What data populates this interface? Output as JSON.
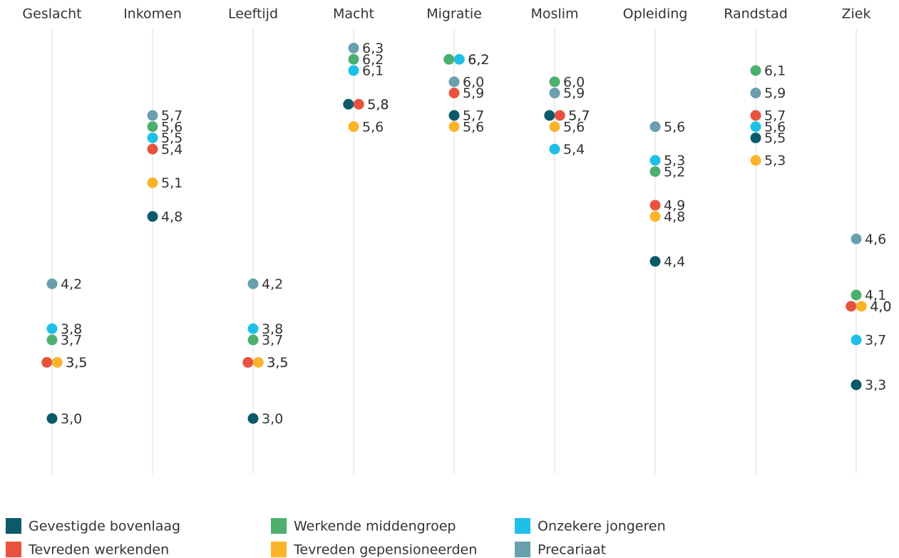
{
  "chart_data": {
    "type": "dot",
    "categories": [
      "Geslacht",
      "Inkomen",
      "Leeftijd",
      "Macht",
      "Migratie",
      "Moslim",
      "Opleiding",
      "Randstad",
      "Ziek"
    ],
    "series": [
      {
        "name": "Gevestigde bovenlaag",
        "color": "#0b5a6b",
        "values": [
          3.0,
          4.8,
          3.0,
          5.8,
          5.7,
          5.7,
          4.4,
          5.5,
          3.3
        ],
        "value_labels": [
          "3,0",
          "4,8",
          "3,0",
          "5,8",
          "5,7",
          "5,7",
          "4,4",
          "5,5",
          "3,3"
        ]
      },
      {
        "name": "Werkende middengroep",
        "color": "#4caf6e",
        "values": [
          3.7,
          5.6,
          3.7,
          6.2,
          6.2,
          6.0,
          5.2,
          6.1,
          4.1
        ],
        "value_labels": [
          "3,7",
          "5,6",
          "3,7",
          "6,2",
          "6,2",
          "6,0",
          "5,2",
          "6,1",
          "4,1"
        ]
      },
      {
        "name": "Onzekere jongeren",
        "color": "#1ec0e6",
        "values": [
          3.8,
          5.5,
          3.8,
          6.1,
          6.2,
          5.4,
          5.3,
          5.6,
          3.7
        ],
        "value_labels": [
          "3,8",
          "5,5",
          "3,8",
          "6,1",
          "6,2",
          "5,4",
          "5,3",
          "5,6",
          "3,7"
        ]
      },
      {
        "name": "Tevreden werkenden",
        "color": "#e8533f",
        "values": [
          3.5,
          5.4,
          3.5,
          5.8,
          5.9,
          5.7,
          4.9,
          5.7,
          4.0
        ],
        "value_labels": [
          "3,5",
          "5,4",
          "3,5",
          "5,8",
          "5,9",
          "5,7",
          "4,9",
          "5,7",
          "4,0"
        ]
      },
      {
        "name": "Tevreden gepensioneerden",
        "color": "#fbb42a",
        "values": [
          3.5,
          5.1,
          3.5,
          5.6,
          5.6,
          5.6,
          4.8,
          5.3,
          4.0
        ],
        "value_labels": [
          "3,5",
          "5,1",
          "3,5",
          "5,6",
          "5,6",
          "5,6",
          "4,8",
          "5,3",
          "4,0"
        ]
      },
      {
        "name": "Precariaat",
        "color": "#6a9fae",
        "values": [
          4.2,
          5.7,
          4.2,
          6.3,
          6.0,
          5.9,
          5.6,
          5.9,
          4.6
        ],
        "value_labels": [
          "4,2",
          "5,7",
          "4,2",
          "6,3",
          "6,0",
          "5,9",
          "5,6",
          "5,9",
          "4,6"
        ]
      }
    ],
    "ylim": [
      2.5,
      6.5
    ]
  }
}
